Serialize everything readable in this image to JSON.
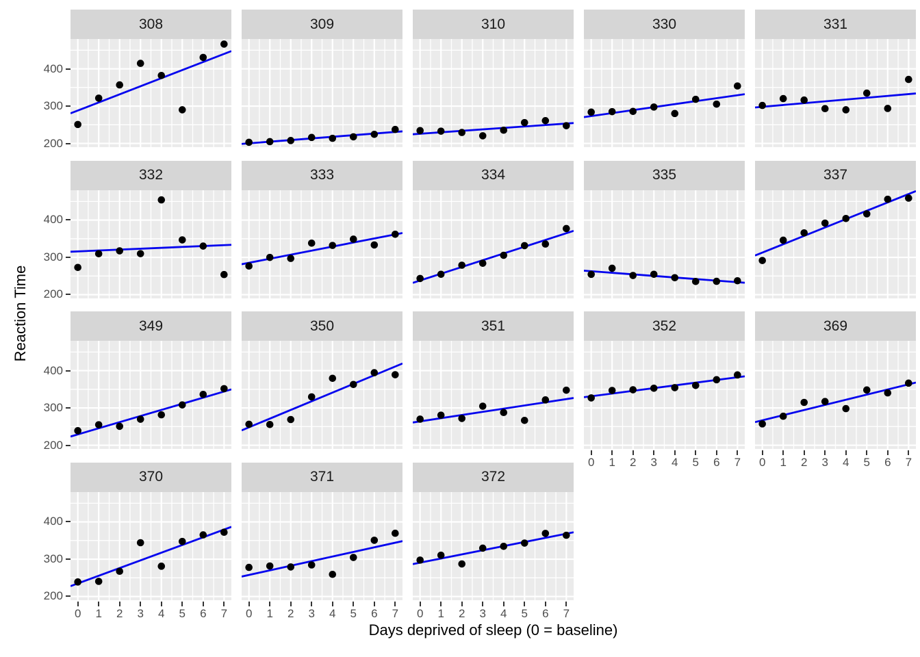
{
  "chart_data": {
    "type": "scatter",
    "title": "",
    "xlabel": "Days deprived of sleep (0 = baseline)",
    "ylabel": "Reaction Time",
    "facet_by": "Subject",
    "smooth": {
      "method": "lm",
      "se": false
    },
    "x": [
      0,
      1,
      2,
      3,
      4,
      5,
      6,
      7
    ],
    "x_ticks": [
      0,
      1,
      2,
      3,
      4,
      5,
      6,
      7
    ],
    "y_ticks": [
      200,
      300,
      400
    ],
    "x_minor": [
      0.5,
      1.5,
      2.5,
      3.5,
      4.5,
      5.5,
      6.5
    ],
    "y_minor": [
      250,
      350,
      450
    ],
    "xlim": [
      -0.35,
      7.35
    ],
    "ylim": [
      190,
      480
    ],
    "grid": true,
    "legend": false,
    "colors": {
      "panel_bg": "#ebebeb",
      "strip_bg": "#d6d6d6",
      "grid": "#ffffff",
      "point": "#000000",
      "line": "#0404ee",
      "axis_text": "#4d4d4d",
      "strip_text": "#1a1a1a",
      "tick": "#333333"
    },
    "facets": [
      {
        "label": "308",
        "values": [
          250.8,
          321.44,
          356.85,
          414.69,
          382.2,
          290.15,
          430.59,
          466.35
        ]
      },
      {
        "label": "309",
        "values": [
          202.98,
          204.71,
          207.72,
          215.96,
          213.63,
          217.73,
          224.3,
          237.31
        ]
      },
      {
        "label": "310",
        "values": [
          234.32,
          232.84,
          229.31,
          220.46,
          235.42,
          255.75,
          261.01,
          247.52
        ]
      },
      {
        "label": "330",
        "values": [
          283.86,
          285.13,
          285.8,
          297.59,
          280.24,
          318.26,
          305.35,
          354.05
        ]
      },
      {
        "label": "331",
        "values": [
          301.82,
          320.12,
          316.28,
          293.32,
          290.08,
          334.82,
          293.75,
          371.58
        ]
      },
      {
        "label": "332",
        "values": [
          272.96,
          309.77,
          317.46,
          310.0,
          454.16,
          346.83,
          330.3,
          253.86
        ]
      },
      {
        "label": "333",
        "values": [
          276.77,
          299.81,
          297.17,
          338.17,
          332.03,
          348.84,
          333.36,
          362.04
        ]
      },
      {
        "label": "334",
        "values": [
          243.36,
          254.67,
          279.02,
          284.19,
          305.52,
          331.52,
          335.75,
          377.3
        ]
      },
      {
        "label": "335",
        "values": [
          254.49,
          270.8,
          251.45,
          254.64,
          245.45,
          235.31,
          235.75,
          237.25
        ]
      },
      {
        "label": "337",
        "values": [
          291.61,
          346.12,
          365.73,
          391.84,
          404.26,
          416.69,
          455.86,
          458.92
        ]
      },
      {
        "label": "349",
        "values": [
          238.93,
          254.92,
          250.71,
          269.77,
          281.56,
          308.1,
          336.28,
          351.65
        ]
      },
      {
        "label": "350",
        "values": [
          256.2,
          255.53,
          268.92,
          329.72,
          379.44,
          362.92,
          394.49,
          389.05
        ]
      },
      {
        "label": "351",
        "values": [
          269.89,
          280.59,
          271.83,
          304.63,
          287.75,
          266.6,
          321.54,
          347.57
        ]
      },
      {
        "label": "352",
        "values": [
          326.88,
          346.86,
          348.74,
          352.83,
          354.43,
          360.43,
          375.64,
          388.54
        ]
      },
      {
        "label": "369",
        "values": [
          257.24,
          277.74,
          314.82,
          317.21,
          298.14,
          348.12,
          340.28,
          366.51
        ]
      },
      {
        "label": "370",
        "values": [
          238.9,
          240.47,
          267.54,
          344.19,
          281.15,
          347.59,
          365.16,
          372.23
        ]
      },
      {
        "label": "371",
        "values": [
          277.9,
          281.79,
          279.17,
          284.51,
          259.27,
          304.63,
          350.78,
          369.47
        ]
      },
      {
        "label": "372",
        "values": [
          297.6,
          310.63,
          287.17,
          329.61,
          334.48,
          343.22,
          369.14,
          364.12
        ]
      }
    ]
  }
}
